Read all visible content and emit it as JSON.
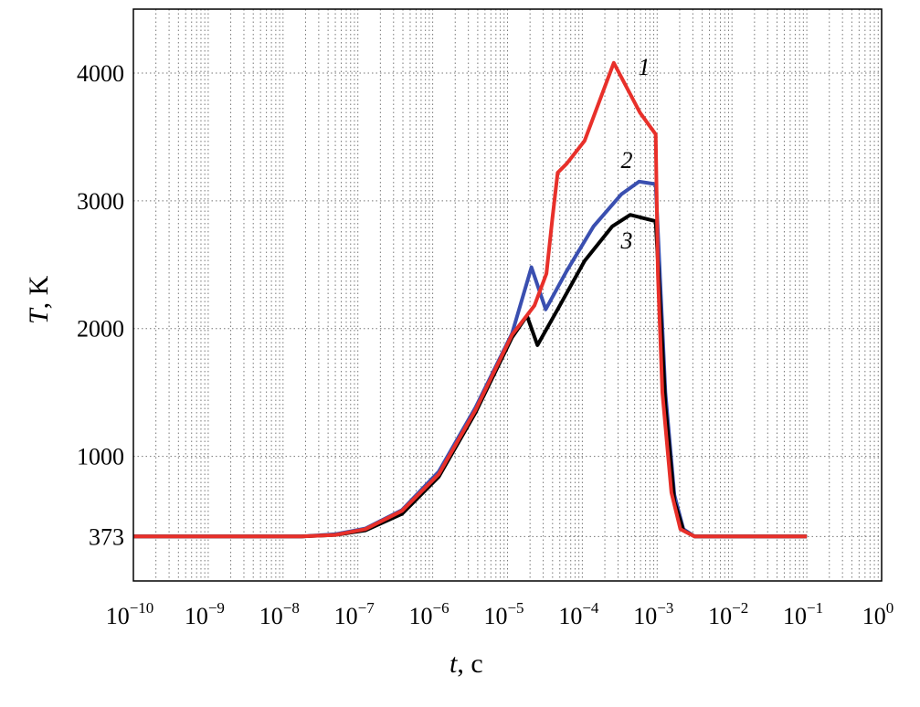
{
  "chart_data": {
    "type": "line",
    "title": "",
    "xlabel": {
      "var": "t",
      "unit": ", c"
    },
    "ylabel": {
      "var": "T",
      "unit": ", K"
    },
    "xscale": "log",
    "xlim_log10": [
      -10,
      0
    ],
    "ylim": [
      25,
      4500
    ],
    "grid": true,
    "x_ticks": [
      {
        "base": "10",
        "exp": "−10",
        "log10": -10
      },
      {
        "base": "10",
        "exp": "−9",
        "log10": -9
      },
      {
        "base": "10",
        "exp": "−8",
        "log10": -8
      },
      {
        "base": "10",
        "exp": "−7",
        "log10": -7
      },
      {
        "base": "10",
        "exp": "−6",
        "log10": -6
      },
      {
        "base": "10",
        "exp": "−5",
        "log10": -5
      },
      {
        "base": "10",
        "exp": "−4",
        "log10": -4
      },
      {
        "base": "10",
        "exp": "−3",
        "log10": -3
      },
      {
        "base": "10",
        "exp": "−2",
        "log10": -2
      },
      {
        "base": "10",
        "exp": "−1",
        "log10": -1
      },
      {
        "base": "10",
        "exp": "0",
        "log10": 0
      }
    ],
    "y_ticks": [
      {
        "label": "373",
        "value": 373
      },
      {
        "label": "1000",
        "value": 1000
      },
      {
        "label": "2000",
        "value": 2000
      },
      {
        "label": "3000",
        "value": 3000
      },
      {
        "label": "4000",
        "value": 4000
      }
    ],
    "series": [
      {
        "name": "2",
        "color": "#3a4fb0",
        "log10_t": [
          -10,
          -7.75,
          -7.3,
          -6.9,
          -6.41,
          -5.92,
          -5.43,
          -4.94,
          -4.68,
          -4.49,
          -4.21,
          -3.85,
          -3.48,
          -3.24,
          -3.02,
          -2.97,
          -2.89,
          -2.77,
          -2.65,
          -2.5,
          -1
        ],
        "T": [
          373,
          373,
          390,
          435,
          580,
          880,
          1380,
          1960,
          2480,
          2150,
          2450,
          2800,
          3050,
          3150,
          3130,
          2500,
          1500,
          700,
          430,
          373,
          373
        ]
      },
      {
        "name": "3",
        "color": "#000000",
        "log10_t": [
          -10,
          -7.75,
          -7.3,
          -6.9,
          -6.41,
          -5.92,
          -5.43,
          -4.94,
          -4.74,
          -4.6,
          -4.33,
          -3.97,
          -3.6,
          -3.36,
          -3.02,
          -2.97,
          -2.89,
          -2.77,
          -2.65,
          -2.5,
          -1
        ],
        "T": [
          373,
          373,
          385,
          420,
          550,
          840,
          1340,
          1930,
          2100,
          1870,
          2150,
          2530,
          2800,
          2890,
          2840,
          2300,
          1400,
          650,
          420,
          373,
          373
        ]
      },
      {
        "name": "1",
        "color": "#e8302a",
        "log10_t": [
          -10,
          -7.75,
          -7.3,
          -6.9,
          -6.41,
          -5.92,
          -5.43,
          -4.94,
          -4.64,
          -4.48,
          -4.4,
          -4.33,
          -4.21,
          -3.97,
          -3.58,
          -3.23,
          -3.02,
          -2.99,
          -2.93,
          -2.81,
          -2.69,
          -2.5,
          -1
        ],
        "T": [
          373,
          373,
          385,
          430,
          573,
          860,
          1360,
          1950,
          2180,
          2430,
          2860,
          3220,
          3290,
          3470,
          4080,
          3690,
          3520,
          2430,
          1500,
          716,
          430,
          373,
          373
        ]
      }
    ],
    "annotations": [
      {
        "text": "1",
        "series": "1"
      },
      {
        "text": "2",
        "series": "2"
      },
      {
        "text": "3",
        "series": "3"
      }
    ]
  }
}
